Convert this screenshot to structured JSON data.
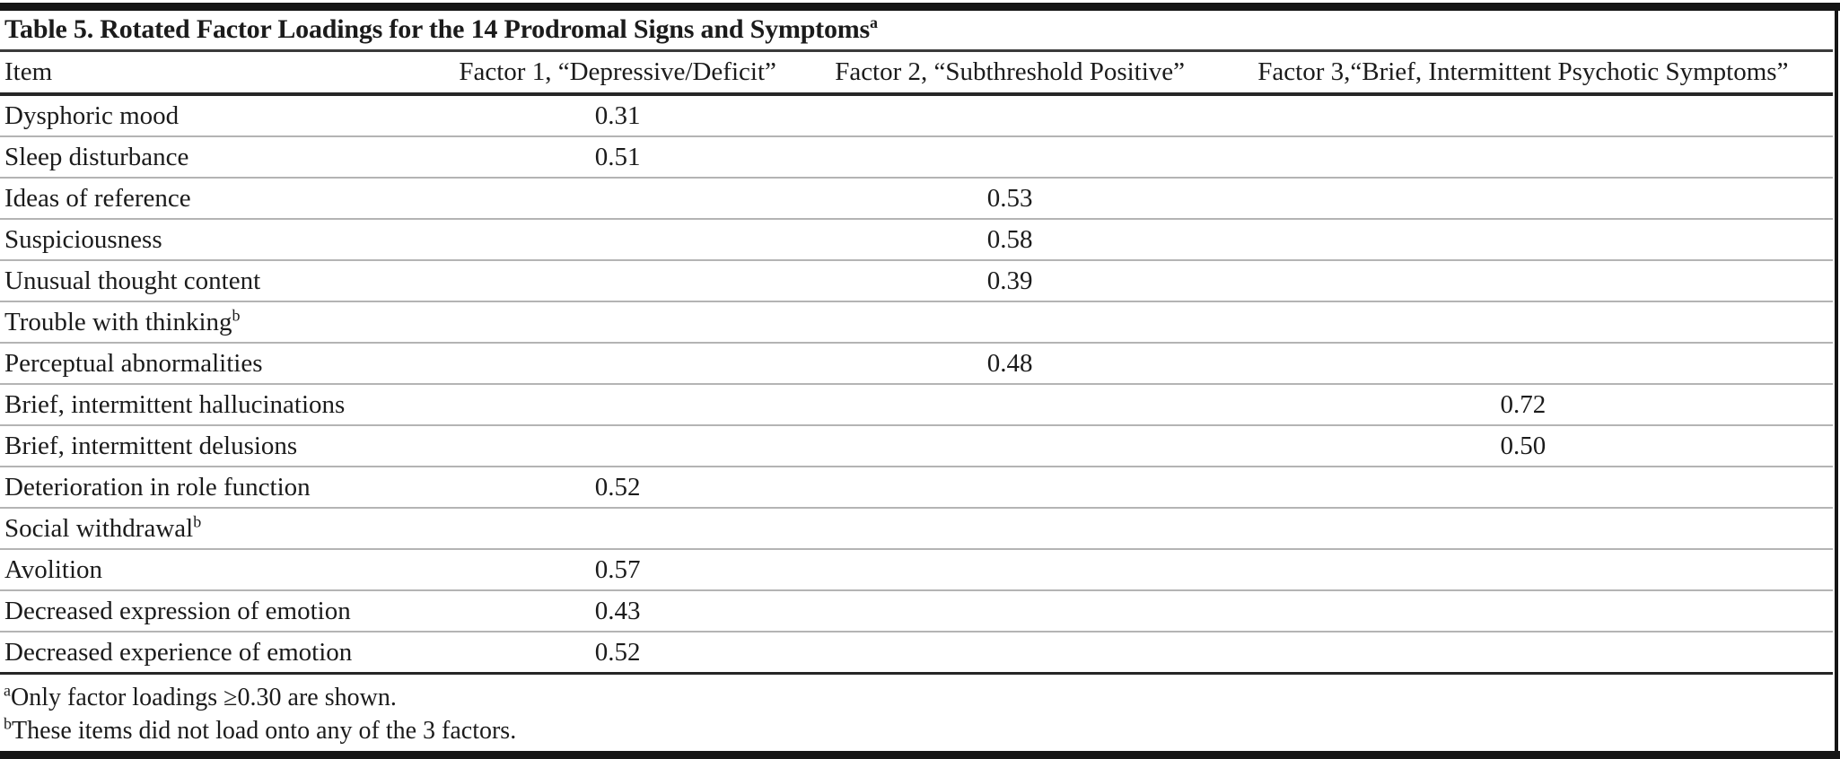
{
  "page": {
    "background": "#ffffff",
    "text_color": "#1b1b1b",
    "rule_light_color": "#b4b4b4",
    "rule_dark_color": "#262626",
    "bar_color": "#151515"
  },
  "table": {
    "title": "Table 5. Rotated Factor Loadings for the 14 Prodromal Signs and Symptoms",
    "title_note_marker": "a",
    "columns": [
      {
        "label": "Item"
      },
      {
        "label": "Factor 1, “Depressive/Deficit”"
      },
      {
        "label": "Factor 2, “Subthreshold Positive”"
      },
      {
        "label": "Factor 3,“Brief, Intermittent Psychotic Symptoms”"
      }
    ],
    "rows": [
      {
        "item": "Dysphoric mood",
        "note": "",
        "f1": "0.31",
        "f2": "",
        "f3": ""
      },
      {
        "item": "Sleep disturbance",
        "note": "",
        "f1": "0.51",
        "f2": "",
        "f3": ""
      },
      {
        "item": "Ideas of reference",
        "note": "",
        "f1": "",
        "f2": "0.53",
        "f3": ""
      },
      {
        "item": "Suspiciousness",
        "note": "",
        "f1": "",
        "f2": "0.58",
        "f3": ""
      },
      {
        "item": "Unusual thought content",
        "note": "",
        "f1": "",
        "f2": "0.39",
        "f3": ""
      },
      {
        "item": "Trouble with thinking",
        "note": "b",
        "f1": "",
        "f2": "",
        "f3": ""
      },
      {
        "item": "Perceptual abnormalities",
        "note": "",
        "f1": "",
        "f2": "0.48",
        "f3": ""
      },
      {
        "item": "Brief, intermittent hallucinations",
        "note": "",
        "f1": "",
        "f2": "",
        "f3": "0.72"
      },
      {
        "item": "Brief, intermittent delusions",
        "note": "",
        "f1": "",
        "f2": "",
        "f3": "0.50"
      },
      {
        "item": "Deterioration in role function",
        "note": "",
        "f1": "0.52",
        "f2": "",
        "f3": ""
      },
      {
        "item": "Social withdrawal",
        "note": "b",
        "f1": "",
        "f2": "",
        "f3": ""
      },
      {
        "item": "Avolition",
        "note": "",
        "f1": "0.57",
        "f2": "",
        "f3": ""
      },
      {
        "item": "Decreased expression of emotion",
        "note": "",
        "f1": "0.43",
        "f2": "",
        "f3": ""
      },
      {
        "item": "Decreased experience of emotion",
        "note": "",
        "f1": "0.52",
        "f2": "",
        "f3": ""
      }
    ],
    "footnotes": [
      {
        "marker": "a",
        "text": "Only factor loadings ≥0.30 are shown."
      },
      {
        "marker": "b",
        "text": "These items did not load onto any of the 3 factors."
      }
    ]
  }
}
